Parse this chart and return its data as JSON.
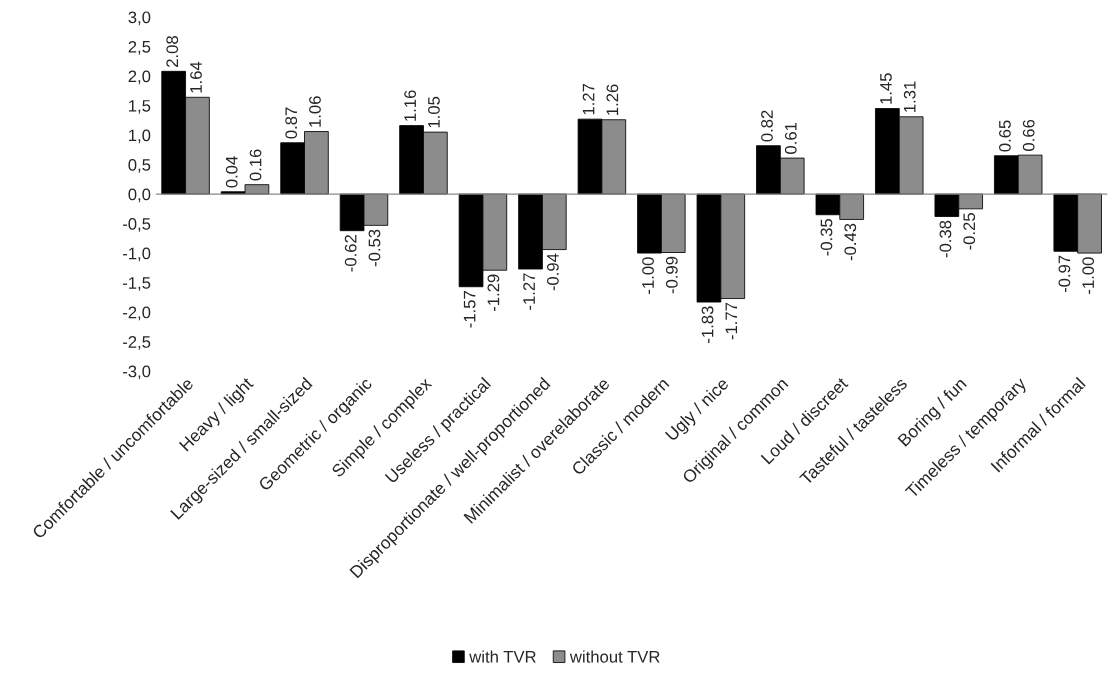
{
  "chart_data": {
    "type": "bar",
    "categories": [
      "Comfortable / uncomfortable",
      "Heavy / light",
      "Large-sized / small-sized",
      "Geometric / organic",
      "Simple / complex",
      "Useless / practical",
      "Disproportionate / well-proportioned",
      "Minimalist / overelaborate",
      "Classic / modern",
      "Ugly / nice",
      "Original / common",
      "Loud / discreet",
      "Tasteful / tasteless",
      "Boring / fun",
      "Timeless / temporary",
      "Informal / formal"
    ],
    "series": [
      {
        "name": "with TVR",
        "color": "#000000",
        "values": [
          2.08,
          0.04,
          0.87,
          -0.62,
          1.16,
          -1.57,
          -1.27,
          1.27,
          -1.0,
          -1.83,
          0.82,
          -0.35,
          1.45,
          -0.38,
          0.65,
          -0.97
        ],
        "value_labels": [
          "2.08",
          "0.04",
          "0.87",
          "-0.62",
          "1.16",
          "-1.57",
          "-1.27",
          "1.27",
          "-1.00",
          "-1.83",
          "0.82",
          "-0.35",
          "1.45",
          "-0.38",
          "0.65",
          "-0.97"
        ]
      },
      {
        "name": "without TVR",
        "color": "#8c8c8c",
        "values": [
          1.64,
          0.16,
          1.06,
          -0.53,
          1.05,
          -1.29,
          -0.94,
          1.26,
          -0.99,
          -1.77,
          0.61,
          -0.43,
          1.31,
          -0.25,
          0.66,
          -1.0
        ],
        "value_labels": [
          "1.64",
          "0.16",
          "1.06",
          "-0.53",
          "1.05",
          "-1.29",
          "-0.94",
          "1.26",
          "-0.99",
          "-1.77",
          "0.61",
          "-0.43",
          "1.31",
          "-0.25",
          "0.66",
          "-1.00"
        ]
      }
    ],
    "ylim": [
      -3.0,
      3.0
    ],
    "yticks": [
      {
        "value": -3.0,
        "label": "-3,0"
      },
      {
        "value": -2.5,
        "label": "-2,5"
      },
      {
        "value": -2.0,
        "label": "-2,0"
      },
      {
        "value": -1.5,
        "label": "-1,5"
      },
      {
        "value": -1.0,
        "label": "-1,0"
      },
      {
        "value": -0.5,
        "label": "-0,5"
      },
      {
        "value": 0.0,
        "label": "0,0"
      },
      {
        "value": 0.5,
        "label": "0,5"
      },
      {
        "value": 1.0,
        "label": "1,0"
      },
      {
        "value": 1.5,
        "label": "1,5"
      },
      {
        "value": 2.0,
        "label": "2,0"
      },
      {
        "value": 2.5,
        "label": "2,5"
      },
      {
        "value": 3.0,
        "label": "3,0"
      }
    ],
    "grid": false,
    "ref_lines": [
      {
        "axis": "y",
        "value": 0,
        "color": "#888888"
      }
    ],
    "legend": "bottom"
  }
}
